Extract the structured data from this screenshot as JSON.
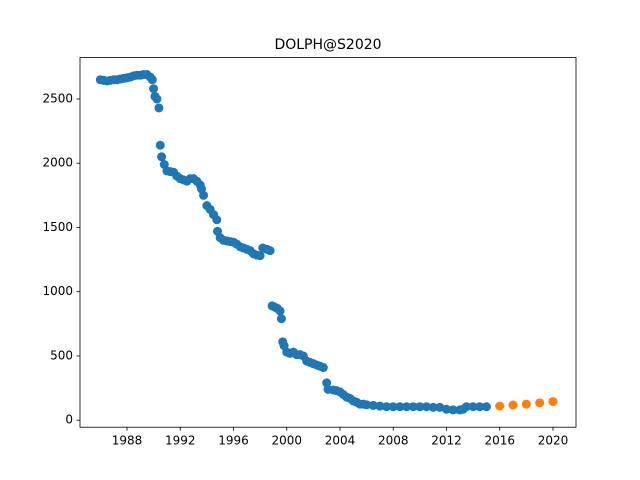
{
  "chart_data": {
    "type": "scatter",
    "title": "DOLPH@S2020",
    "xlim": [
      1984.47,
      2021.73
    ],
    "xticks": [
      1988,
      1992,
      1996,
      2000,
      2004,
      2008,
      2012,
      2016,
      2020
    ],
    "ylim": [
      -54.5,
      2822
    ],
    "yticks": [
      0,
      500,
      1000,
      1500,
      2000,
      2500
    ],
    "series": [
      {
        "color": "#1f77b4",
        "x": [
          1986.0,
          1986.25,
          1986.5,
          1986.75,
          1987.0,
          1987.25,
          1987.5,
          1987.75,
          1988.0,
          1988.25,
          1988.5,
          1988.75,
          1989.0,
          1989.25,
          1989.5,
          1989.75,
          1989.9,
          1990.0,
          1990.1,
          1990.25,
          1990.4,
          1990.5,
          1990.6,
          1990.8,
          1991.0,
          1991.25,
          1991.5,
          1991.75,
          1992.0,
          1992.25,
          1992.5,
          1992.75,
          1993.0,
          1993.25,
          1993.5,
          1993.6,
          1993.75,
          1994.0,
          1994.25,
          1994.5,
          1994.75,
          1994.8,
          1995.0,
          1995.25,
          1995.5,
          1995.75,
          1996.0,
          1996.25,
          1996.5,
          1996.75,
          1997.0,
          1997.25,
          1997.5,
          1997.75,
          1998.0,
          1998.2,
          1998.5,
          1998.75,
          1998.9,
          1999.1,
          1999.3,
          1999.5,
          1999.6,
          1999.7,
          1999.8,
          2000.0,
          2000.25,
          2000.5,
          2000.75,
          2001.0,
          2001.25,
          2001.5,
          2001.75,
          2002.0,
          2002.25,
          2002.5,
          2002.75,
          2003.0,
          2003.1,
          2003.5,
          2003.75,
          2004.0,
          2004.25,
          2004.5,
          2004.75,
          2005.0,
          2005.25,
          2005.5,
          2005.75,
          2006.0,
          2006.5,
          2007.0,
          2007.5,
          2008.0,
          2008.5,
          2009.0,
          2009.5,
          2010.0,
          2010.5,
          2011.0,
          2011.5,
          2012.0,
          2012.5,
          2013.0,
          2013.25,
          2013.5,
          2014.0,
          2014.5,
          2015.0
        ],
        "values": [
          2650,
          2645,
          2640,
          2645,
          2650,
          2650,
          2655,
          2660,
          2665,
          2670,
          2680,
          2685,
          2685,
          2690,
          2690,
          2670,
          2650,
          2580,
          2520,
          2500,
          2430,
          2140,
          2050,
          1990,
          1940,
          1935,
          1930,
          1900,
          1880,
          1870,
          1860,
          1880,
          1880,
          1860,
          1830,
          1800,
          1750,
          1670,
          1640,
          1600,
          1560,
          1470,
          1420,
          1400,
          1395,
          1390,
          1385,
          1370,
          1350,
          1340,
          1330,
          1320,
          1295,
          1285,
          1280,
          1340,
          1330,
          1320,
          890,
          880,
          870,
          850,
          790,
          610,
          580,
          530,
          520,
          530,
          510,
          510,
          500,
          460,
          450,
          440,
          430,
          420,
          410,
          290,
          240,
          235,
          230,
          220,
          200,
          180,
          170,
          150,
          140,
          125,
          125,
          120,
          115,
          110,
          105,
          105,
          105,
          105,
          105,
          105,
          105,
          100,
          100,
          85,
          80,
          80,
          85,
          105,
          105,
          105,
          105
        ]
      },
      {
        "color": "#ff7f0e",
        "x": [
          2016,
          2017,
          2018,
          2019,
          2020
        ],
        "values": [
          110,
          118,
          125,
          135,
          145
        ]
      }
    ]
  }
}
